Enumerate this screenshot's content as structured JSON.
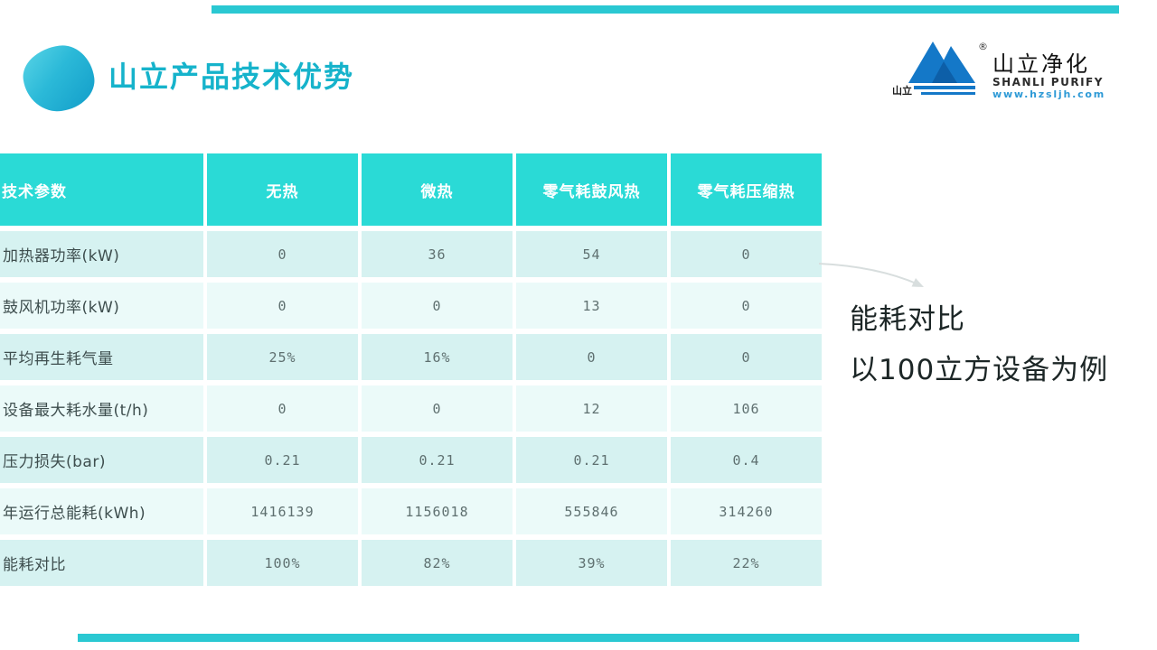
{
  "slide": {
    "title": "山立产品技术优势",
    "annotation": {
      "line1": "能耗对比",
      "line2": "以100立方设备为例"
    }
  },
  "logo": {
    "brand_cn": "山立净化",
    "brand_en": "SHANLI PURIFY",
    "website": "www.hzsljh.com",
    "mark_text": "山立",
    "registered": "®"
  },
  "table": {
    "columns": [
      "技术参数",
      "无热",
      "微热",
      "零气耗鼓风热",
      "零气耗压缩热"
    ],
    "rows": [
      {
        "label": "加热器功率(kW)",
        "values": [
          "0",
          "36",
          "54",
          "0"
        ]
      },
      {
        "label": "鼓风机功率(kW)",
        "values": [
          "0",
          "0",
          "13",
          "0"
        ]
      },
      {
        "label": "平均再生耗气量",
        "values": [
          "25%",
          "16%",
          "0",
          "0"
        ]
      },
      {
        "label": "设备最大耗水量(t/h)",
        "values": [
          "0",
          "0",
          "12",
          "106"
        ]
      },
      {
        "label": "压力损失(bar)",
        "values": [
          "0.21",
          "0.21",
          "0.21",
          "0.4"
        ]
      },
      {
        "label": "年运行总能耗(kWh)",
        "values": [
          "1416139",
          "1156018",
          "555846",
          "314260"
        ]
      },
      {
        "label": "能耗对比",
        "values": [
          "100%",
          "82%",
          "39%",
          "22%"
        ]
      }
    ]
  },
  "colors": {
    "accent_bar_teal": "#2AC8D2",
    "table_header_teal": "#2ADAD6",
    "row_light_teal": "#D6F2F1",
    "row_lighter_teal": "#EBFAF9",
    "title_teal": "#16B3CB",
    "logo_blue": "#1478C8",
    "logo_blue_dark": "#0D5FA8",
    "website_blue": "#2E9AD6",
    "cell_text_gray": "#5F7070"
  }
}
